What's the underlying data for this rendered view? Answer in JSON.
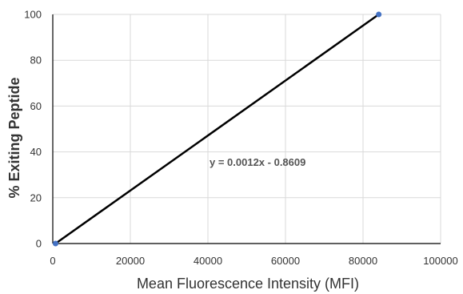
{
  "chart_data": {
    "type": "scatter",
    "xlabel": "Mean Fluorescence Intensity (MFI)",
    "ylabel": "% Exiting Peptide",
    "xlim": [
      0,
      100000
    ],
    "ylim": [
      0,
      100
    ],
    "x_ticks": [
      0,
      20000,
      40000,
      60000,
      80000,
      100000
    ],
    "y_ticks": [
      0,
      20,
      40,
      60,
      80,
      100
    ],
    "x_tick_labels": [
      "0",
      "20000",
      "40000",
      "60000",
      "80000",
      "100000"
    ],
    "y_tick_labels": [
      "0",
      "20",
      "40",
      "60",
      "80",
      "100"
    ],
    "grid": true,
    "series": [
      {
        "points": [
          {
            "x": 717,
            "y": 0
          },
          {
            "x": 84051,
            "y": 100
          }
        ],
        "marker_color": "#4472C4"
      }
    ],
    "trendline": {
      "type": "linear",
      "slope": 0.0012,
      "intercept": -0.8609,
      "color": "#000000"
    },
    "annotation": "y = 0.0012x  - 0.8609"
  }
}
